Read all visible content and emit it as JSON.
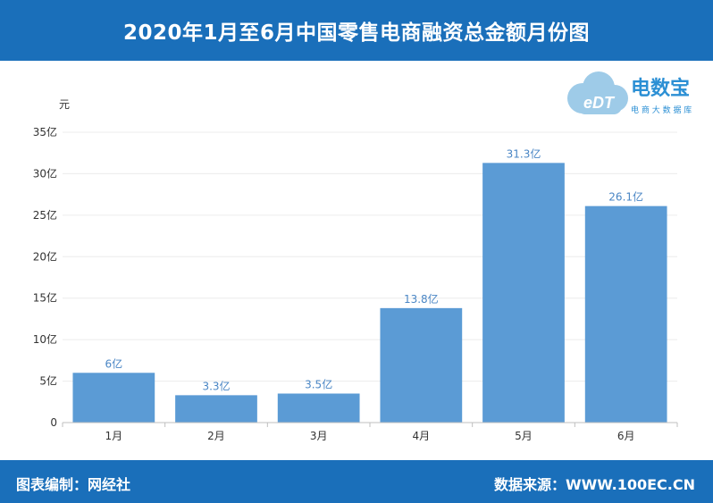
{
  "header": {
    "title": "2020年1月至6月中国零售电商融资总金额月份图"
  },
  "footer": {
    "left_text": "图表编制：网经社",
    "right_text": "数据来源：WWW.100EC.CN"
  },
  "logo": {
    "mark_text": "eDT",
    "name": "电数宝",
    "tagline": "电 商 大 数 据 库"
  },
  "colors": {
    "brand": "#1a6fba",
    "bar": "#5b9bd5",
    "label": "#4a86c5"
  },
  "chart_data": {
    "type": "bar",
    "title": "2020年1月至6月中国零售电商融资总金额月份图",
    "ylabel": "元",
    "categories": [
      "1月",
      "2月",
      "3月",
      "4月",
      "5月",
      "6月"
    ],
    "values": [
      6,
      3.3,
      3.5,
      13.8,
      31.3,
      26.1
    ],
    "data_labels": [
      "6亿",
      "3.3亿",
      "3.5亿",
      "13.8亿",
      "31.3亿",
      "26.1亿"
    ],
    "ylim": [
      0,
      35
    ],
    "yticks": [
      0,
      5,
      10,
      15,
      20,
      25,
      30,
      35
    ],
    "ytick_labels": [
      "0",
      "5亿",
      "10亿",
      "15亿",
      "20亿",
      "25亿",
      "30亿",
      "35亿"
    ],
    "grid": true,
    "legend": "none"
  }
}
